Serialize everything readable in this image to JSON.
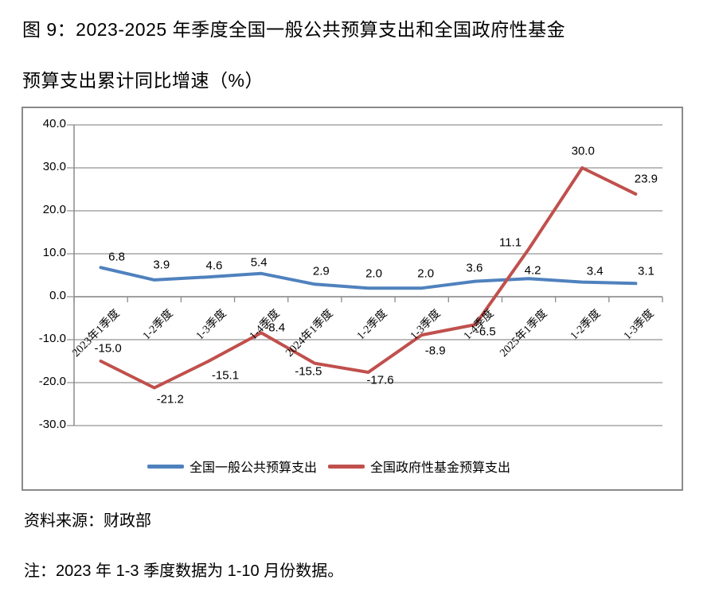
{
  "title": {
    "line1": "图 9：2023-2025 年季度全国一般公共预算支出和全国政府性基金",
    "line2": "预算支出累计同比增速（%）"
  },
  "source": "资料来源：财政部",
  "note": "注：2023 年 1-3 季度数据为 1-10 月份数据。",
  "chart_data": {
    "type": "line",
    "title": "2023-2025 年季度全国一般公共预算支出和全国政府性基金预算支出累计同比增速（%）",
    "categories": [
      "2023年1季度",
      "1-2季度",
      "1-3季度",
      "1-4季度",
      "2024年1季度",
      "1-2季度",
      "1-3季度",
      "1-4季度",
      "2025年1季度",
      "1-2季度",
      "1-3季度"
    ],
    "series": [
      {
        "name": "全国一般公共预算支出",
        "color": "#4F81BD",
        "values": [
          6.8,
          3.9,
          4.6,
          5.4,
          2.9,
          2.0,
          2.0,
          3.6,
          4.2,
          3.4,
          3.1
        ],
        "label_offsets": [
          [
            20,
            -13
          ],
          [
            9,
            -19
          ],
          [
            8,
            -14
          ],
          [
            -3,
            -14
          ],
          [
            8,
            -16
          ],
          [
            7,
            -18
          ],
          [
            5,
            -18
          ],
          [
            -1,
            -17
          ],
          [
            5,
            -10
          ],
          [
            16,
            -14
          ],
          [
            13,
            -15
          ]
        ]
      },
      {
        "name": "全国政府性基金预算支出",
        "color": "#C0504D",
        "values": [
          -15.0,
          -21.2,
          -15.1,
          -8.4,
          -15.5,
          -17.6,
          -8.9,
          -6.5,
          11.1,
          30.0,
          23.9
        ],
        "label_offsets": [
          [
            9,
            -16
          ],
          [
            20,
            15
          ],
          [
            22,
            17
          ],
          [
            17,
            -6
          ],
          [
            -8,
            10
          ],
          [
            15,
            10
          ],
          [
            17,
            20
          ],
          [
            13,
            9
          ],
          [
            -23,
            -8
          ],
          [
            1,
            -21
          ],
          [
            13,
            -19
          ]
        ]
      }
    ],
    "ylim": [
      -30,
      40
    ],
    "ytick_step": 10,
    "ytick_labels": [
      "40.0",
      "30.0",
      "20.0",
      "10.0",
      "0.0",
      "-10.0",
      "-20.0",
      "-30.0"
    ],
    "grid": true,
    "gridline_color": "#949494",
    "axis_color": "#8a8a8a",
    "legend_position": "bottom",
    "xlabel": "",
    "ylabel": ""
  }
}
